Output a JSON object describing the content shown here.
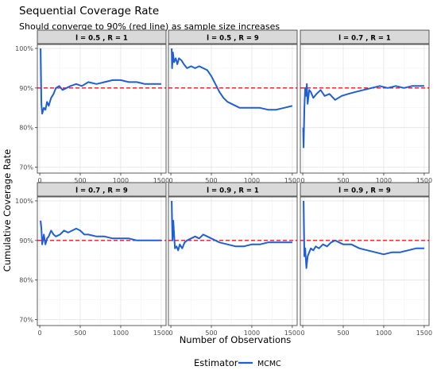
{
  "title": "Sequential Coverage Rate",
  "subtitle": "Should converge to 90% (red line) as sample size increases",
  "chart_data": {
    "type": "line",
    "xlabel": "Number of Observations",
    "ylabel": "Cumulative Coverage Rate",
    "xlim": [
      -30,
      1560
    ],
    "ylim": [
      0.685,
      1.01
    ],
    "x_ticks": [
      0,
      500,
      1000,
      1500
    ],
    "x_tick_labels": [
      "0",
      "500",
      "1000",
      "1500"
    ],
    "y_ticks": [
      0.7,
      0.8,
      0.9,
      1.0
    ],
    "y_tick_labels": [
      "70%",
      "80%",
      "90%",
      "100%"
    ],
    "reference_line": {
      "y": 0.9,
      "color": "#e41a1c",
      "style": "dashed"
    },
    "grid": true,
    "legend": {
      "title": "Estimator",
      "position": "bottom",
      "entries": [
        {
          "name": "MCMC",
          "color": "#1f5fd6"
        }
      ]
    },
    "panels": [
      {
        "label": "l = 0.5 , R = 1",
        "series": [
          {
            "name": "MCMC",
            "x": [
              10,
              20,
              30,
              50,
              70,
              90,
              110,
              140,
              170,
              200,
              240,
              280,
              330,
              380,
              450,
              520,
              600,
              700,
              800,
              900,
              1000,
              1100,
              1200,
              1300,
              1400,
              1500
            ],
            "y": [
              1.0,
              0.86,
              0.835,
              0.85,
              0.845,
              0.865,
              0.855,
              0.875,
              0.885,
              0.9,
              0.905,
              0.895,
              0.9,
              0.905,
              0.91,
              0.905,
              0.915,
              0.91,
              0.915,
              0.92,
              0.92,
              0.915,
              0.915,
              0.91,
              0.91,
              0.91
            ]
          }
        ]
      },
      {
        "label": "l = 0.5 , R = 9",
        "series": [
          {
            "name": "MCMC",
            "x": [
              10,
              15,
              25,
              40,
              60,
              80,
              100,
              130,
              160,
              200,
              250,
              300,
              350,
              400,
              450,
              500,
              550,
              600,
              650,
              700,
              750,
              800,
              850,
              900,
              1000,
              1100,
              1200,
              1300,
              1400,
              1500
            ],
            "y": [
              1.0,
              0.95,
              0.99,
              0.965,
              0.975,
              0.96,
              0.975,
              0.97,
              0.96,
              0.95,
              0.955,
              0.95,
              0.955,
              0.95,
              0.945,
              0.93,
              0.91,
              0.89,
              0.875,
              0.865,
              0.86,
              0.855,
              0.85,
              0.85,
              0.85,
              0.85,
              0.845,
              0.845,
              0.85,
              0.855
            ]
          }
        ]
      },
      {
        "label": "l = 0.7 , R = 1",
        "series": [
          {
            "name": "MCMC",
            "x": [
              5,
              10,
              20,
              30,
              40,
              50,
              60,
              80,
              100,
              130,
              170,
              220,
              270,
              330,
              400,
              480,
              560,
              650,
              750,
              850,
              950,
              1050,
              1150,
              1250,
              1350,
              1500
            ],
            "y": [
              0.8,
              0.75,
              0.85,
              0.9,
              0.88,
              0.91,
              0.86,
              0.895,
              0.89,
              0.875,
              0.885,
              0.895,
              0.88,
              0.885,
              0.87,
              0.88,
              0.885,
              0.89,
              0.895,
              0.9,
              0.905,
              0.9,
              0.905,
              0.9,
              0.905,
              0.905
            ]
          }
        ]
      },
      {
        "label": "l = 0.7 , R = 9",
        "series": [
          {
            "name": "MCMC",
            "x": [
              10,
              20,
              30,
              50,
              70,
              90,
              110,
              140,
              170,
              200,
              250,
              300,
              350,
              400,
              450,
              500,
              550,
              600,
              700,
              800,
              900,
              1000,
              1100,
              1200,
              1300,
              1400,
              1500
            ],
            "y": [
              0.95,
              0.93,
              0.89,
              0.915,
              0.89,
              0.905,
              0.91,
              0.925,
              0.915,
              0.91,
              0.915,
              0.925,
              0.92,
              0.925,
              0.93,
              0.925,
              0.915,
              0.915,
              0.91,
              0.91,
              0.905,
              0.905,
              0.905,
              0.9,
              0.9,
              0.9,
              0.9
            ]
          }
        ]
      },
      {
        "label": "l = 0.9 , R = 1",
        "series": [
          {
            "name": "MCMC",
            "x": [
              10,
              20,
              30,
              50,
              70,
              90,
              110,
              140,
              170,
              200,
              250,
              300,
              350,
              400,
              450,
              500,
              550,
              600,
              700,
              800,
              900,
              1000,
              1100,
              1200,
              1300,
              1400,
              1500
            ],
            "y": [
              1.0,
              0.9,
              0.95,
              0.88,
              0.885,
              0.875,
              0.89,
              0.88,
              0.895,
              0.9,
              0.905,
              0.91,
              0.905,
              0.915,
              0.91,
              0.905,
              0.9,
              0.895,
              0.89,
              0.885,
              0.885,
              0.89,
              0.89,
              0.895,
              0.895,
              0.895,
              0.895
            ]
          }
        ]
      },
      {
        "label": "l = 0.9 , R = 9",
        "series": [
          {
            "name": "MCMC",
            "x": [
              10,
              20,
              30,
              45,
              60,
              80,
              100,
              130,
              160,
              200,
              250,
              300,
              350,
              400,
              450,
              500,
              600,
              700,
              800,
              900,
              1000,
              1100,
              1200,
              1300,
              1400,
              1500
            ],
            "y": [
              1.0,
              0.86,
              0.88,
              0.83,
              0.86,
              0.87,
              0.88,
              0.875,
              0.885,
              0.88,
              0.89,
              0.885,
              0.895,
              0.9,
              0.895,
              0.89,
              0.89,
              0.88,
              0.875,
              0.87,
              0.865,
              0.87,
              0.87,
              0.875,
              0.88,
              0.88
            ]
          }
        ]
      }
    ]
  }
}
